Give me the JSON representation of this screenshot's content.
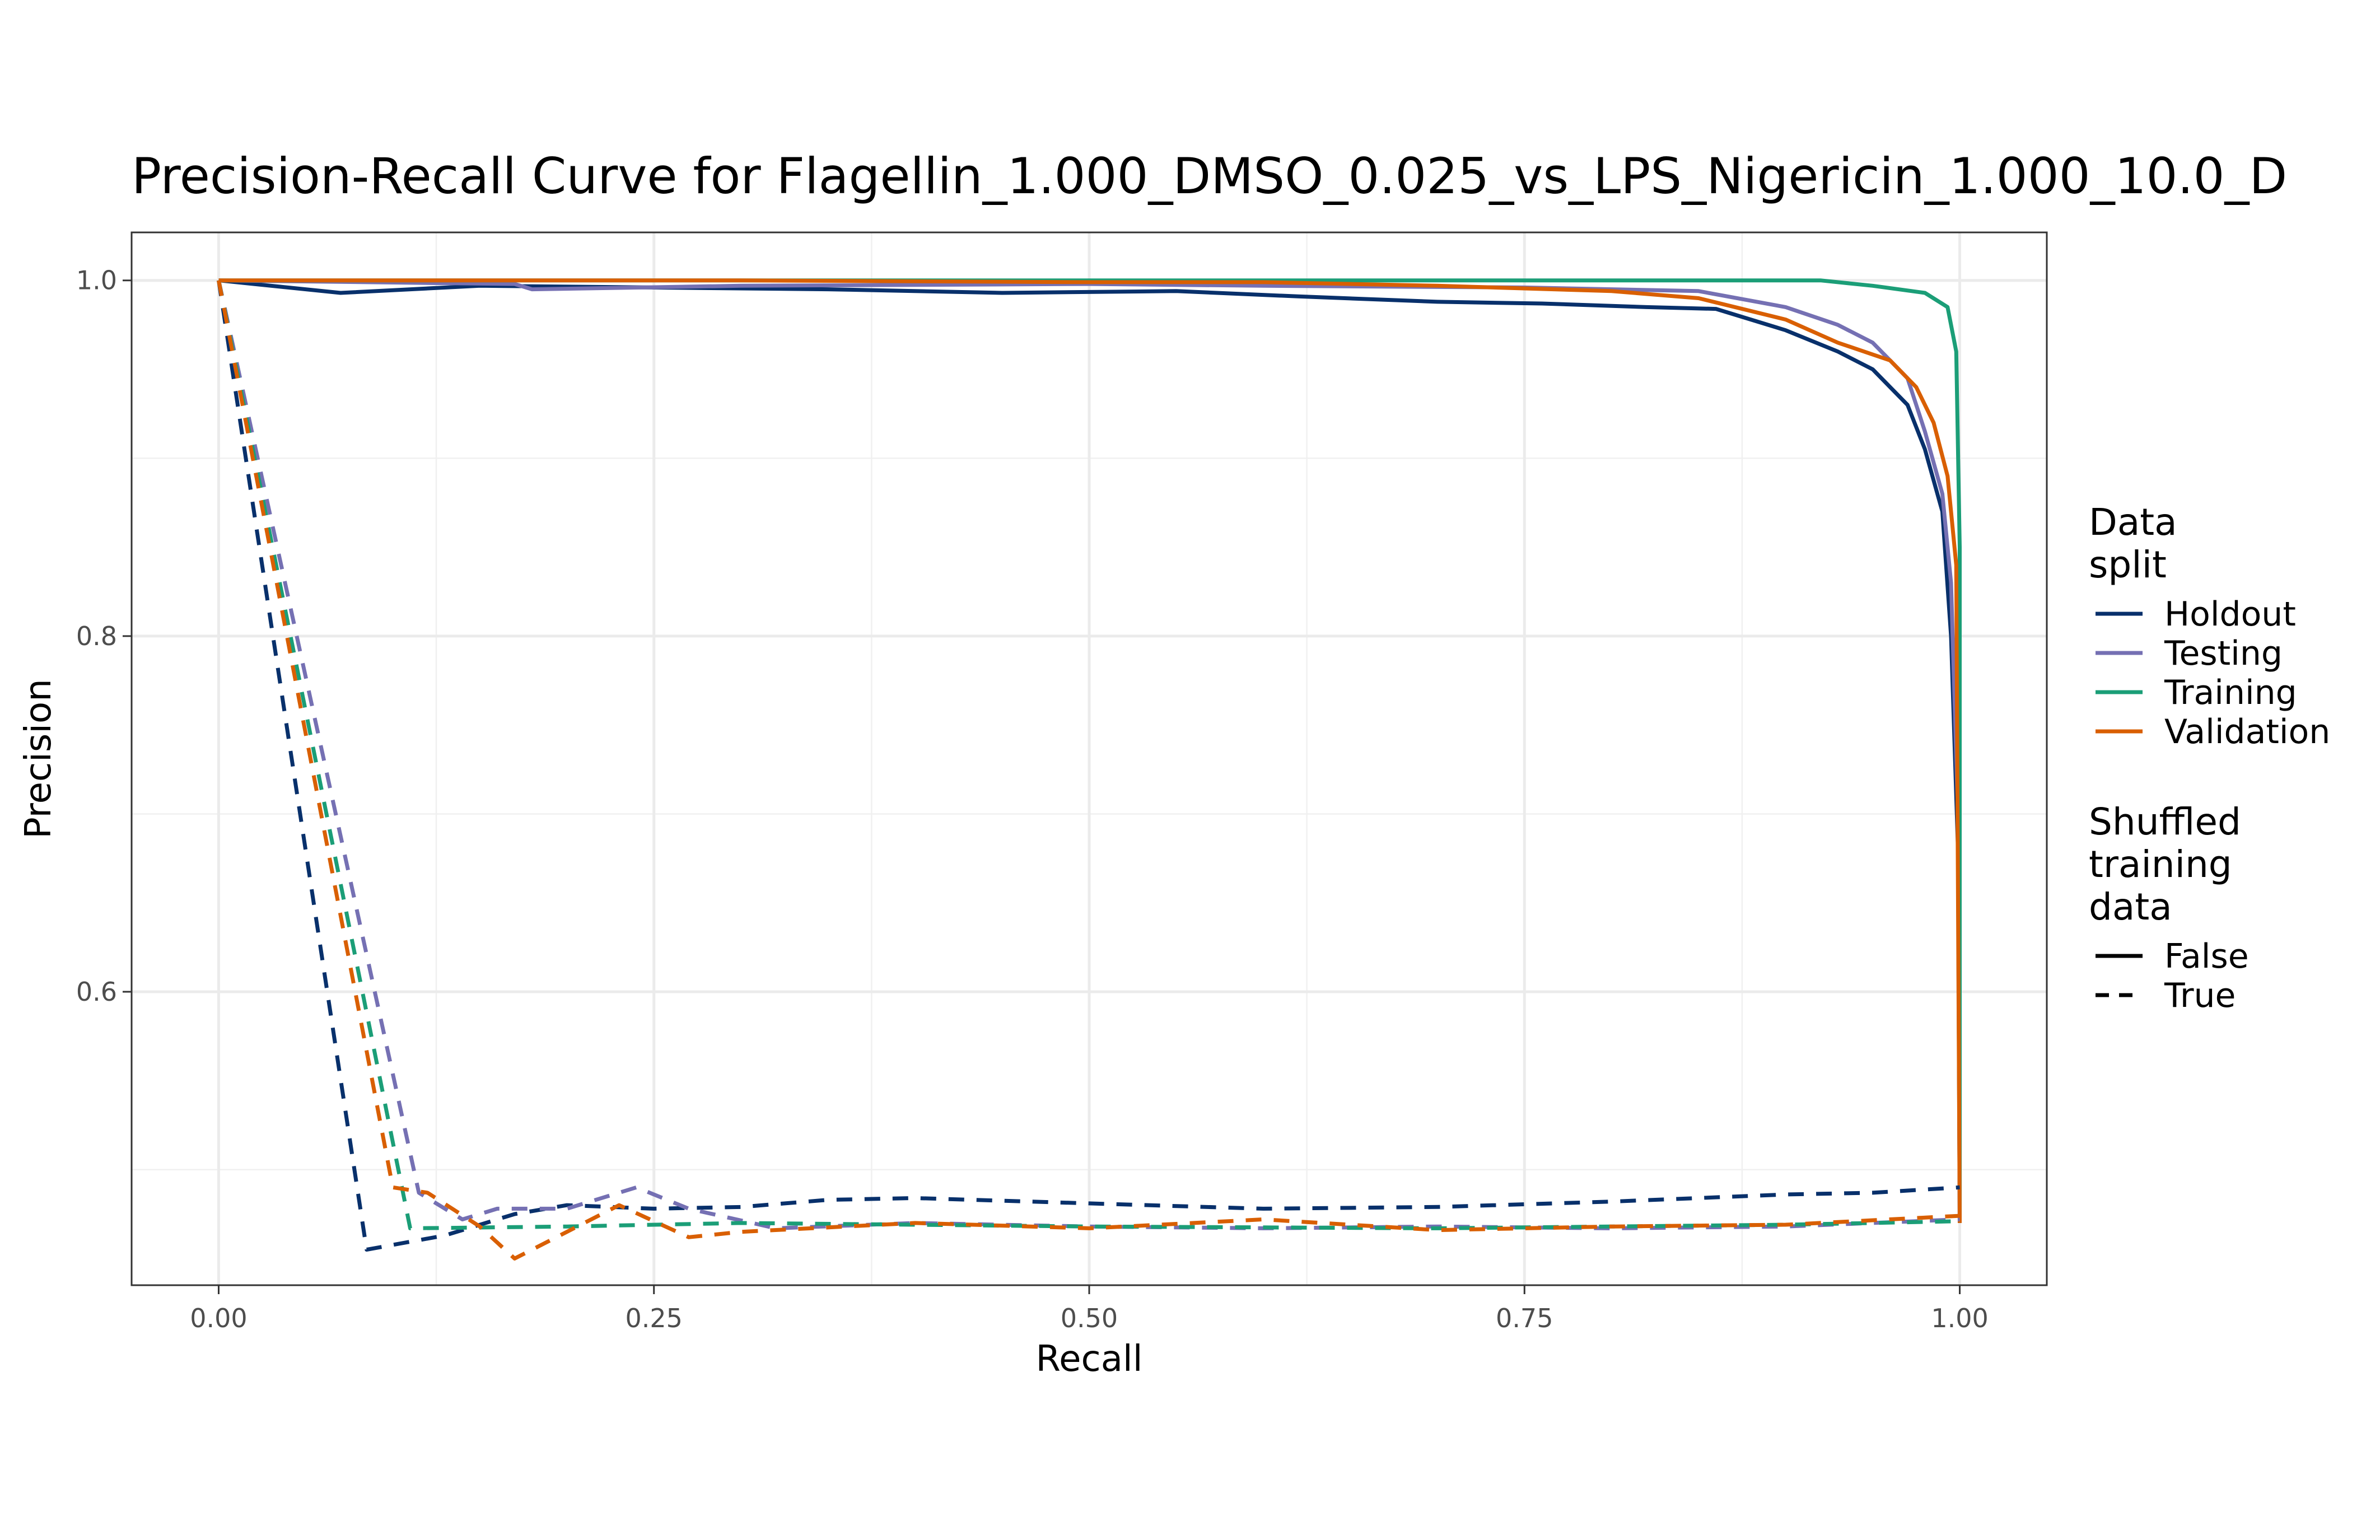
{
  "chart_data": {
    "type": "line",
    "title": "Precision-Recall Curve for Flagellin_1.000_DMSO_0.025_vs_LPS_Nigericin_1.000_10.0_D",
    "xlabel": "Recall",
    "ylabel": "Precision",
    "xlim": [
      -0.05,
      1.05
    ],
    "ylim": [
      0.435,
      1.027
    ],
    "x_ticks": [
      0.0,
      0.25,
      0.5,
      0.75,
      1.0
    ],
    "x_tick_labels": [
      "0.00",
      "0.25",
      "0.50",
      "0.75",
      "1.00"
    ],
    "y_ticks": [
      0.6,
      0.8,
      1.0
    ],
    "y_tick_labels": [
      "0.6",
      "0.8",
      "1.0"
    ],
    "grid": true,
    "legend_position": "right",
    "legend": {
      "color_title": "Data split",
      "color_entries": [
        "Holdout",
        "Testing",
        "Training",
        "Validation"
      ],
      "linetype_title": "Shuffled training data",
      "linetype_entries": [
        "False",
        "True"
      ]
    },
    "colors": {
      "Holdout": "#08306b",
      "Testing": "#7570b3",
      "Training": "#1b9e77",
      "Validation": "#d95f02"
    },
    "series": [
      {
        "name": "Holdout",
        "shuffled": "False",
        "points": [
          [
            0.0,
            1.0
          ],
          [
            0.07,
            0.993
          ],
          [
            0.15,
            0.997
          ],
          [
            0.25,
            0.996
          ],
          [
            0.35,
            0.995
          ],
          [
            0.45,
            0.993
          ],
          [
            0.55,
            0.994
          ],
          [
            0.62,
            0.991
          ],
          [
            0.7,
            0.988
          ],
          [
            0.76,
            0.987
          ],
          [
            0.82,
            0.985
          ],
          [
            0.86,
            0.984
          ],
          [
            0.9,
            0.972
          ],
          [
            0.93,
            0.96
          ],
          [
            0.95,
            0.95
          ],
          [
            0.97,
            0.93
          ],
          [
            0.98,
            0.905
          ],
          [
            0.99,
            0.87
          ],
          [
            0.995,
            0.8
          ],
          [
            0.999,
            0.68
          ],
          [
            1.0,
            0.47
          ]
        ]
      },
      {
        "name": "Testing",
        "shuffled": "False",
        "points": [
          [
            0.0,
            1.0
          ],
          [
            0.17,
            0.998
          ],
          [
            0.18,
            0.995
          ],
          [
            0.3,
            0.997
          ],
          [
            0.5,
            0.998
          ],
          [
            0.6,
            0.997
          ],
          [
            0.75,
            0.996
          ],
          [
            0.85,
            0.994
          ],
          [
            0.9,
            0.985
          ],
          [
            0.93,
            0.975
          ],
          [
            0.95,
            0.965
          ],
          [
            0.97,
            0.945
          ],
          [
            0.98,
            0.915
          ],
          [
            0.99,
            0.88
          ],
          [
            0.995,
            0.83
          ],
          [
            0.999,
            0.7
          ],
          [
            1.0,
            0.47
          ]
        ]
      },
      {
        "name": "Training",
        "shuffled": "False",
        "points": [
          [
            0.0,
            1.0
          ],
          [
            0.5,
            1.0
          ],
          [
            0.8,
            1.0
          ],
          [
            0.92,
            1.0
          ],
          [
            0.95,
            0.997
          ],
          [
            0.98,
            0.993
          ],
          [
            0.993,
            0.985
          ],
          [
            0.998,
            0.96
          ],
          [
            1.0,
            0.85
          ],
          [
            1.0,
            0.47
          ]
        ]
      },
      {
        "name": "Validation",
        "shuffled": "False",
        "points": [
          [
            0.0,
            1.0
          ],
          [
            0.3,
            1.0
          ],
          [
            0.5,
            0.999
          ],
          [
            0.6,
            0.999
          ],
          [
            0.7,
            0.997
          ],
          [
            0.8,
            0.994
          ],
          [
            0.85,
            0.99
          ],
          [
            0.9,
            0.978
          ],
          [
            0.93,
            0.965
          ],
          [
            0.96,
            0.955
          ],
          [
            0.975,
            0.94
          ],
          [
            0.985,
            0.92
          ],
          [
            0.993,
            0.89
          ],
          [
            0.998,
            0.84
          ],
          [
            1.0,
            0.47
          ]
        ]
      },
      {
        "name": "Holdout",
        "shuffled": "True",
        "points": [
          [
            0.0,
            1.0
          ],
          [
            0.085,
            0.455
          ],
          [
            0.13,
            0.463
          ],
          [
            0.17,
            0.475
          ],
          [
            0.2,
            0.48
          ],
          [
            0.25,
            0.478
          ],
          [
            0.3,
            0.479
          ],
          [
            0.35,
            0.483
          ],
          [
            0.4,
            0.484
          ],
          [
            0.5,
            0.481
          ],
          [
            0.6,
            0.478
          ],
          [
            0.7,
            0.479
          ],
          [
            0.8,
            0.482
          ],
          [
            0.9,
            0.486
          ],
          [
            0.95,
            0.487
          ],
          [
            1.0,
            0.49
          ]
        ]
      },
      {
        "name": "Testing",
        "shuffled": "True",
        "points": [
          [
            0.0,
            1.0
          ],
          [
            0.115,
            0.487
          ],
          [
            0.14,
            0.472
          ],
          [
            0.16,
            0.478
          ],
          [
            0.2,
            0.478
          ],
          [
            0.24,
            0.49
          ],
          [
            0.27,
            0.478
          ],
          [
            0.32,
            0.467
          ],
          [
            0.4,
            0.47
          ],
          [
            0.5,
            0.468
          ],
          [
            0.6,
            0.467
          ],
          [
            0.7,
            0.468
          ],
          [
            0.8,
            0.467
          ],
          [
            0.9,
            0.468
          ],
          [
            1.0,
            0.472
          ]
        ]
      },
      {
        "name": "Training",
        "shuffled": "True",
        "points": [
          [
            0.0,
            1.0
          ],
          [
            0.11,
            0.467
          ],
          [
            0.2,
            0.468
          ],
          [
            0.3,
            0.47
          ],
          [
            0.5,
            0.468
          ],
          [
            0.7,
            0.467
          ],
          [
            0.9,
            0.469
          ],
          [
            1.0,
            0.471
          ]
        ]
      },
      {
        "name": "Validation",
        "shuffled": "True",
        "points": [
          [
            0.0,
            1.0
          ],
          [
            0.1,
            0.49
          ],
          [
            0.12,
            0.487
          ],
          [
            0.15,
            0.468
          ],
          [
            0.17,
            0.45
          ],
          [
            0.2,
            0.465
          ],
          [
            0.23,
            0.48
          ],
          [
            0.27,
            0.462
          ],
          [
            0.3,
            0.465
          ],
          [
            0.4,
            0.47
          ],
          [
            0.5,
            0.467
          ],
          [
            0.6,
            0.472
          ],
          [
            0.7,
            0.466
          ],
          [
            0.8,
            0.468
          ],
          [
            0.9,
            0.469
          ],
          [
            1.0,
            0.474
          ]
        ]
      }
    ]
  }
}
